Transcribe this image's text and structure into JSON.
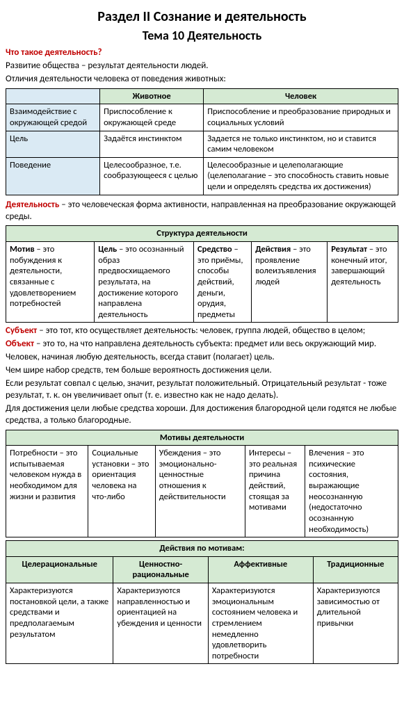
{
  "titles": {
    "section": "Раздел II Сознание и деятельность",
    "theme": "Тема 10 Деятельность"
  },
  "intro": {
    "question": "Что такое деятельность?",
    "line1": "Развитие общества – результат деятельности людей.",
    "line2": "Отличия деятельности человека от поведения животных:"
  },
  "table1": {
    "col_animal": "Животное",
    "col_human": "Человек",
    "r1_label": "Взаимодействие с окружающей средой",
    "r1_a": "Приспособление к окружающей среде",
    "r1_h": "Приспособление и преобразование природных и социальных условий",
    "r2_label": "Цель",
    "r2_a": "Задаётся инстинктом",
    "r2_h": "Задается не только инстинктом, но и ставится самим человеком",
    "r3_label": "Поведение",
    "r3_a": "Целесообразное, т.е. сообразующееся с целью",
    "r3_h": "Целесообразные и целеполагающие (целеполагание – это способность ставить новые цели и определять средства их достижения)"
  },
  "def1": {
    "term": "Деятельность",
    "rest": " – это человеческая форма активности, направленная на преобразование окружающей среды."
  },
  "table2": {
    "title": "Структура деятельности",
    "c1t": "Мотив",
    "c1r": " – это побуждения к деятельности, связанные с удовлетворением потребностей",
    "c2t": "Цель",
    "c2r": " – это осознанный образ предвосхищаемого результата, на достижение которого направлена деятельность",
    "c3t": "Средство",
    "c3r": " – это приёмы, способы действий, деньги, орудия, предметы",
    "c4t": "Действия",
    "c4r": " – это проявление волеизъявления людей",
    "c5t": "Результат",
    "c5r": " – это конечный итог, завершающий деятельность"
  },
  "defs2": {
    "subj_t": "Субъект",
    "subj_r": " – это тот, кто осуществляет деятельность: человек, группа людей, общество в целом;",
    "obj_t": "Объект",
    "obj_r": " – это то, на что направлена деятельность субъекта: предмет или весь окружающий мир.",
    "p1": "Человек, начиная любую деятельность, всегда ставит (полагает) цель.",
    "p2": "Чем шире набор средств, тем больше вероятность достижения цели.",
    "p3": "Если результат совпал с целью, значит, результат положительный. Отрицательный результат - тоже результат, т. к. он увеличивает опыт (т. е. известно как не надо делать).",
    "p4": "Для достижения цели любые средства хороши. Для достижения благородной цели годятся не любые средства, а только благородные."
  },
  "table3": {
    "title": "Мотивы деятельности",
    "c1": "Потребности – это испытываемая человеком нужда в необходимом для жизни и развития",
    "c2": "Социальные установки – это ориентация человека на что-либо",
    "c3": "Убеждения – это эмоционально-ценностные отношения к действительности",
    "c4": "Интересы – это реальная причина действий, стоящая за мотивами",
    "c5": "Влечения – это психические состояния, выражающие неосознанную (недостаточно осознанную необходимость)"
  },
  "table4": {
    "title": "Действия по мотивам:",
    "h1": "Целерациональные",
    "h2": "Ценностно-рациональные",
    "h3": "Аффективные",
    "h4": "Традиционные",
    "c1": "Характеризуются постановкой цели, а также средствами и предполагаемым результатом",
    "c2": "Характеризуются направленностью и ориентацией на убеждения и ценности",
    "c3": "Характеризуются эмоциональным состоянием человека и стремлением немедленно удовлетворить потребности",
    "c4": "Характеризуются зависимостью от длительной привычки"
  },
  "colors": {
    "green": "#d5ead3",
    "blue": "#daeaf4",
    "red": "#c00000"
  }
}
